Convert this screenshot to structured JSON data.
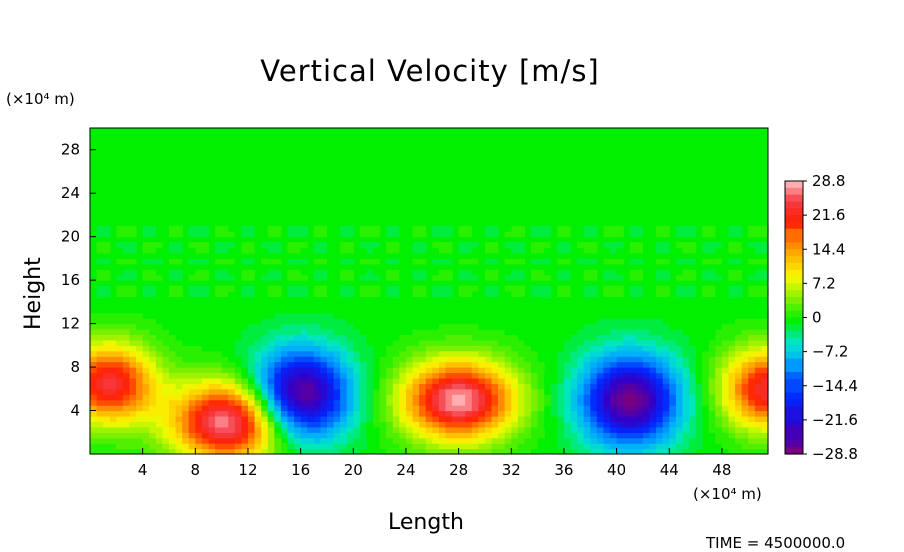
{
  "chart_data": {
    "type": "heatmap",
    "title": "Vertical Velocity [m/s]",
    "xlabel": "Length",
    "ylabel": "Height",
    "x_unit": "(×10⁴ m)",
    "y_unit": "(×10⁴ m)",
    "xlim": [
      0,
      51.5
    ],
    "ylim": [
      0,
      30
    ],
    "x_ticks": [
      4,
      8,
      12,
      16,
      20,
      24,
      28,
      32,
      36,
      40,
      44,
      48
    ],
    "y_ticks": [
      4,
      8,
      12,
      16,
      20,
      24,
      28
    ],
    "colorbar": {
      "min": -28.8,
      "max": 28.8,
      "labels": [
        "28.8",
        "21.6",
        "14.4",
        "7.2",
        "0",
        "−7.2",
        "−14.4",
        "−21.6",
        "−28.8"
      ],
      "label_values": [
        28.8,
        21.6,
        14.4,
        7.2,
        0,
        -7.2,
        -14.4,
        -21.6,
        -28.8
      ],
      "levels": 40
    },
    "features": [
      {
        "kind": "updraft",
        "x": 1.5,
        "y": 6.5,
        "peak": 24
      },
      {
        "kind": "updraft",
        "x": 10.5,
        "y": 3,
        "peak": 28.8
      },
      {
        "kind": "downdraft",
        "x": 16,
        "y": 5.5,
        "peak": -28.8
      },
      {
        "kind": "updraft",
        "x": 28,
        "y": 5,
        "peak": 28.8
      },
      {
        "kind": "downdraft",
        "x": 41,
        "y": 5,
        "peak": -28.8
      },
      {
        "kind": "updraft",
        "x": 51.5,
        "y": 6,
        "peak": 24
      }
    ]
  },
  "footer": {
    "time_label": "TIME = 4500000.0"
  }
}
